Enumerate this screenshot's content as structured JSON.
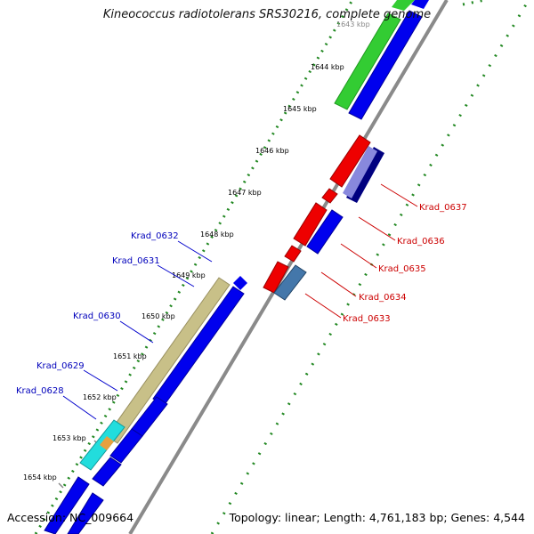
{
  "title": "Kineococcus radiotolerans SRS30216, complete genome",
  "footer": {
    "accession": "Accession: NC_009664",
    "summary": "Topology: linear; Length: 4,761,183 bp; Genes: 4,544"
  },
  "ticks": [
    {
      "label": "1643 kbp"
    },
    {
      "label": "1644 kbp"
    },
    {
      "label": "1645 kbp"
    },
    {
      "label": "1646 kbp"
    },
    {
      "label": "1647 kbp"
    },
    {
      "label": "1648 kbp"
    },
    {
      "label": "1649 kbp"
    },
    {
      "label": "1650 kbp"
    },
    {
      "label": "1651 kbp"
    },
    {
      "label": "1652 kbp"
    },
    {
      "label": "1653 kbp"
    },
    {
      "label": "1654 kbp"
    }
  ],
  "gene_labels_left": [
    "Krad_0632",
    "Krad_0631",
    "Krad_0630",
    "Krad_0629",
    "Krad_0628"
  ],
  "gene_labels_right": [
    "Krad_0637",
    "Krad_0636",
    "Krad_0635",
    "Krad_0634",
    "Krad_0633"
  ],
  "colors": {
    "blue": "#0000ee",
    "red": "#ee0000",
    "green": "#33cc33",
    "olive": "#c8c088",
    "cyan": "#22dddd",
    "navy": "#000080",
    "lavender": "#8888dd",
    "steel": "#4477aa",
    "left_label": "#0000bb",
    "right_label": "#cc0000",
    "tick_green": "#228822"
  }
}
